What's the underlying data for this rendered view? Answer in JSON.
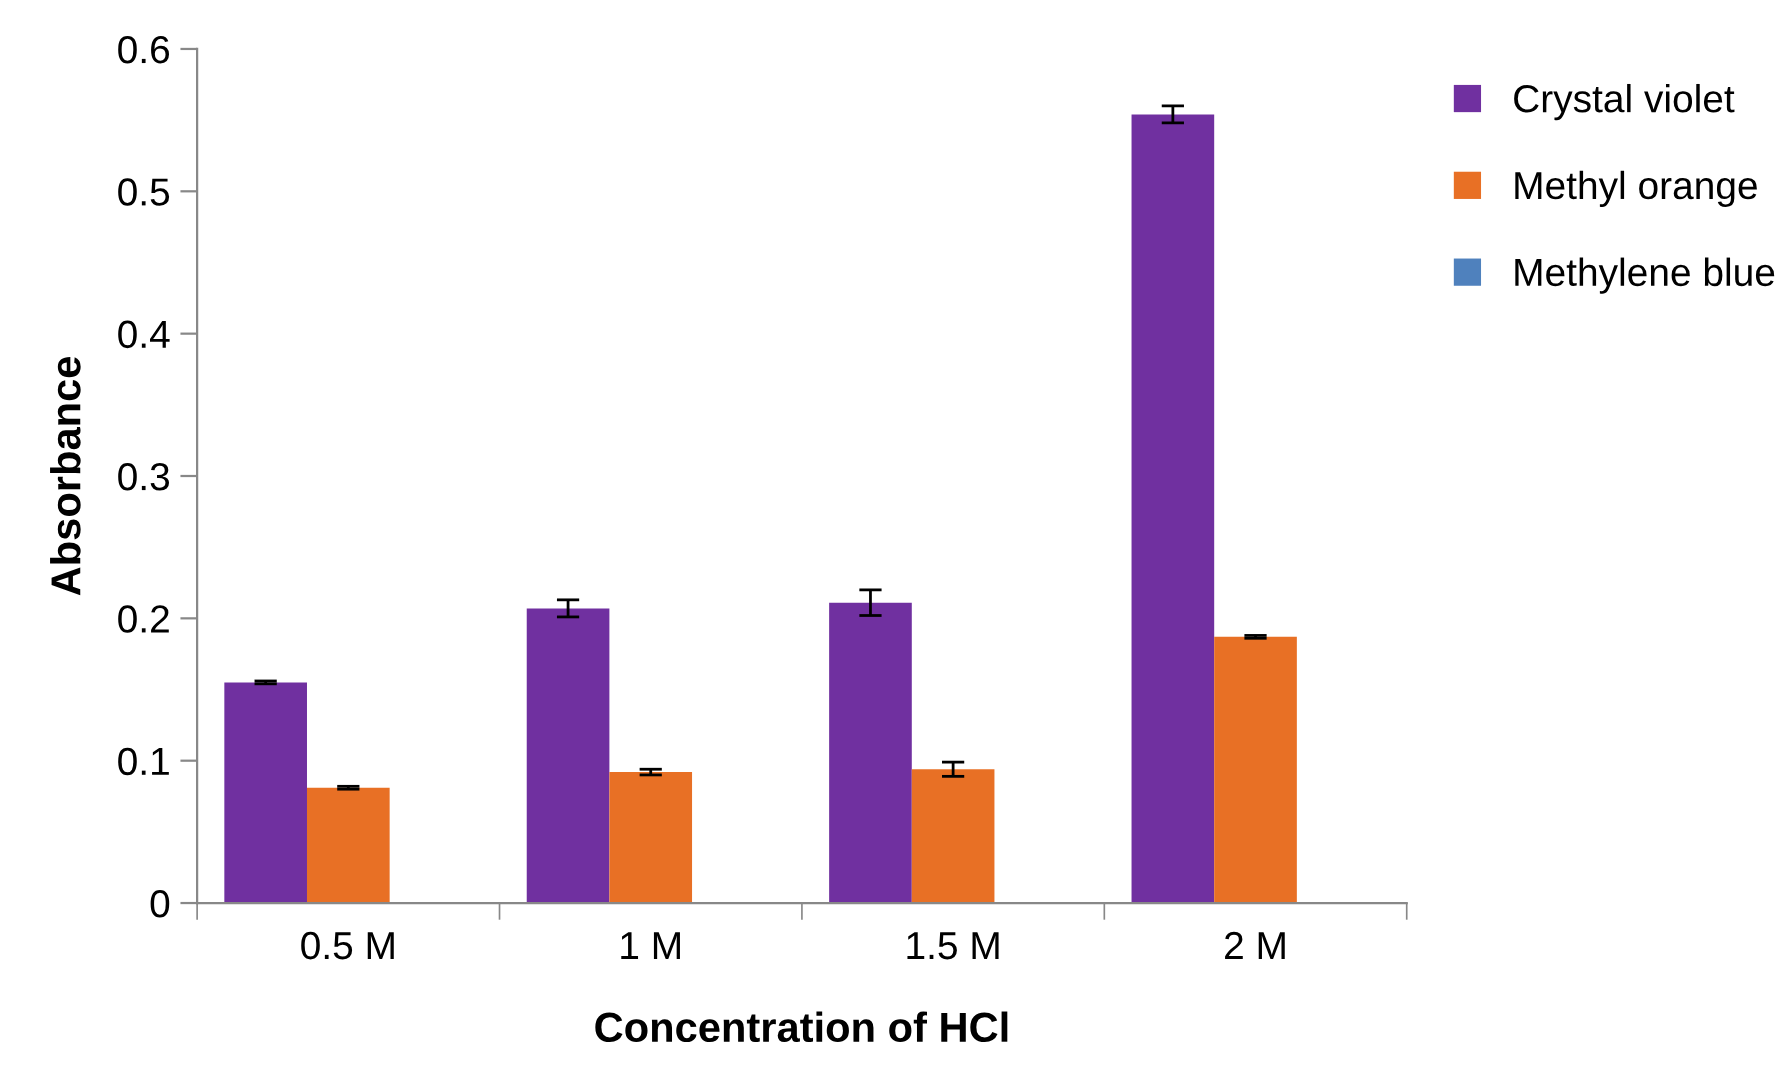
{
  "chart_data": {
    "type": "bar",
    "xlabel": "Concentration of HCl",
    "ylabel": "Absorbance",
    "categories": [
      "0.5 M",
      "1 M",
      "1.5 M",
      "2 M"
    ],
    "series": [
      {
        "name": "Crystal violet",
        "color": "#7030a0",
        "values": [
          0.155,
          0.207,
          0.211,
          0.554
        ],
        "errors": [
          0.001,
          0.006,
          0.009,
          0.006
        ]
      },
      {
        "name": "Methyl orange",
        "color": "#e87025",
        "values": [
          0.081,
          0.092,
          0.094,
          0.187
        ],
        "errors": [
          0.001,
          0.002,
          0.005,
          0.001
        ]
      },
      {
        "name": "Methylene blue",
        "color": "#4f81bd",
        "values": [
          null,
          null,
          null,
          null
        ]
      }
    ],
    "ylim": [
      0,
      0.6
    ],
    "yticks": [
      0,
      0.1,
      0.2,
      0.3,
      0.4,
      0.5,
      0.6
    ],
    "grid": false,
    "legend": "top right"
  }
}
